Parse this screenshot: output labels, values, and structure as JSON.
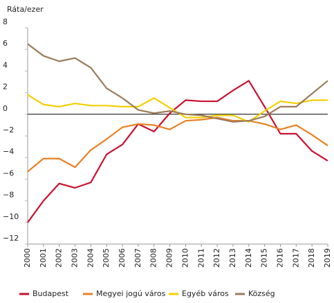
{
  "chart_data": {
    "type": "line",
    "y_label": "Ráta/ezer",
    "categories": [
      "2000",
      "2001",
      "2002",
      "2003",
      "2004",
      "2005",
      "2006",
      "2007",
      "2008",
      "2009",
      "2010",
      "2011",
      "2012",
      "2013",
      "2014",
      "2015",
      "2016",
      "2017",
      "2018",
      "2019"
    ],
    "series": [
      {
        "name": "Budapest",
        "color": "#c8102e",
        "values": [
          -10,
          -8,
          -6.4,
          -6.8,
          -6.3,
          -3.7,
          -2.8,
          -0.9,
          -1.6,
          0.1,
          1.3,
          1.2,
          1.2,
          2.2,
          3.1,
          0.7,
          -1.8,
          -1.8,
          -3.4,
          -4.3
        ]
      },
      {
        "name": "Megyei jogú város",
        "color": "#e98123",
        "values": [
          -5.3,
          -4.1,
          -4.1,
          -4.9,
          -3.3,
          -2.3,
          -1.2,
          -0.9,
          -1.0,
          -1.4,
          -0.6,
          -0.5,
          -0.3,
          -0.6,
          -0.6,
          -0.9,
          -1.4,
          -1.0,
          -1.9,
          -2.9
        ]
      },
      {
        "name": "Egyéb város",
        "color": "#f5cf00",
        "values": [
          1.8,
          0.9,
          0.7,
          1.0,
          0.8,
          0.8,
          0.7,
          0.7,
          1.5,
          0.6,
          -0.3,
          -0.3,
          -0.1,
          -0.1,
          -0.7,
          0.3,
          1.2,
          1.0,
          1.3,
          1.3
        ]
      },
      {
        "name": "Község",
        "color": "#9b7b5b",
        "values": [
          6.5,
          5.4,
          4.9,
          5.2,
          4.3,
          2.4,
          1.5,
          0.4,
          0.1,
          0.3,
          0.0,
          -0.1,
          -0.4,
          -0.7,
          -0.6,
          -0.2,
          0.7,
          0.7,
          1.9,
          3.1
        ]
      }
    ],
    "ylim": [
      -12,
      8
    ],
    "yticks": [
      {
        "value": -12,
        "label": "−12"
      },
      {
        "value": -10,
        "label": "−10"
      },
      {
        "value": -8,
        "label": "−8"
      },
      {
        "value": -6,
        "label": "−6"
      },
      {
        "value": -4,
        "label": "−4"
      },
      {
        "value": -2,
        "label": "−2"
      },
      0,
      2,
      4,
      6,
      8
    ],
    "legend": "bottom"
  }
}
